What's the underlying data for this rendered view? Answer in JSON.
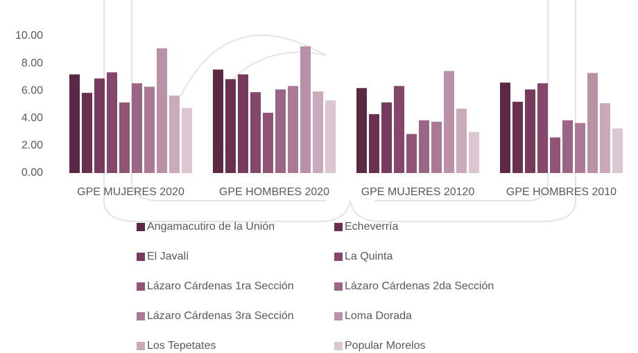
{
  "chart_data": {
    "type": "bar",
    "categories": [
      "GPE MUJERES 2020",
      "GPE HOMBRES 2020",
      "GPE MUJERES 20120",
      "GPE HOMBRES 2010"
    ],
    "series": [
      {
        "name": "Angamacutiro de la Unión",
        "color": "#5c2844",
        "values": [
          7.2,
          7.55,
          6.2,
          6.6
        ]
      },
      {
        "name": "Echeverría",
        "color": "#6a3050",
        "values": [
          5.85,
          6.85,
          4.3,
          5.2
        ]
      },
      {
        "name": "El Javalí",
        "color": "#773a5d",
        "values": [
          6.9,
          7.2,
          5.15,
          6.1
        ]
      },
      {
        "name": "La Quinta",
        "color": "#84466a",
        "values": [
          7.35,
          5.9,
          6.35,
          6.55
        ]
      },
      {
        "name": "Lázaro Cárdenas 1ra Sección",
        "color": "#905477",
        "values": [
          5.15,
          4.4,
          2.85,
          2.6
        ]
      },
      {
        "name": "Lázaro Cárdenas 2da Sección",
        "color": "#9d6585",
        "values": [
          6.55,
          6.1,
          3.85,
          3.85
        ]
      },
      {
        "name": "Lázaro Cárdenas 3ra Sección",
        "color": "#ab7995",
        "values": [
          6.3,
          6.35,
          3.75,
          3.65
        ]
      },
      {
        "name": "Loma Dorada",
        "color": "#ba90a7",
        "values": [
          9.1,
          9.25,
          7.45,
          7.3
        ]
      },
      {
        "name": "Los Tepetates",
        "color": "#caa9bb",
        "values": [
          5.65,
          5.95,
          4.7,
          5.1
        ]
      },
      {
        "name": "Popular Morelos",
        "color": "#dbc6d1",
        "values": [
          4.75,
          5.3,
          3.0,
          3.25
        ]
      }
    ],
    "ylim": [
      0,
      10
    ],
    "yticks": [
      {
        "value": 0,
        "label": "0.00"
      },
      {
        "value": 2,
        "label": "2.00"
      },
      {
        "value": 4,
        "label": "4.00"
      },
      {
        "value": 6,
        "label": "6.00"
      },
      {
        "value": 8,
        "label": "8.00"
      },
      {
        "value": 10,
        "label": "10.00"
      }
    ],
    "grid": false
  }
}
